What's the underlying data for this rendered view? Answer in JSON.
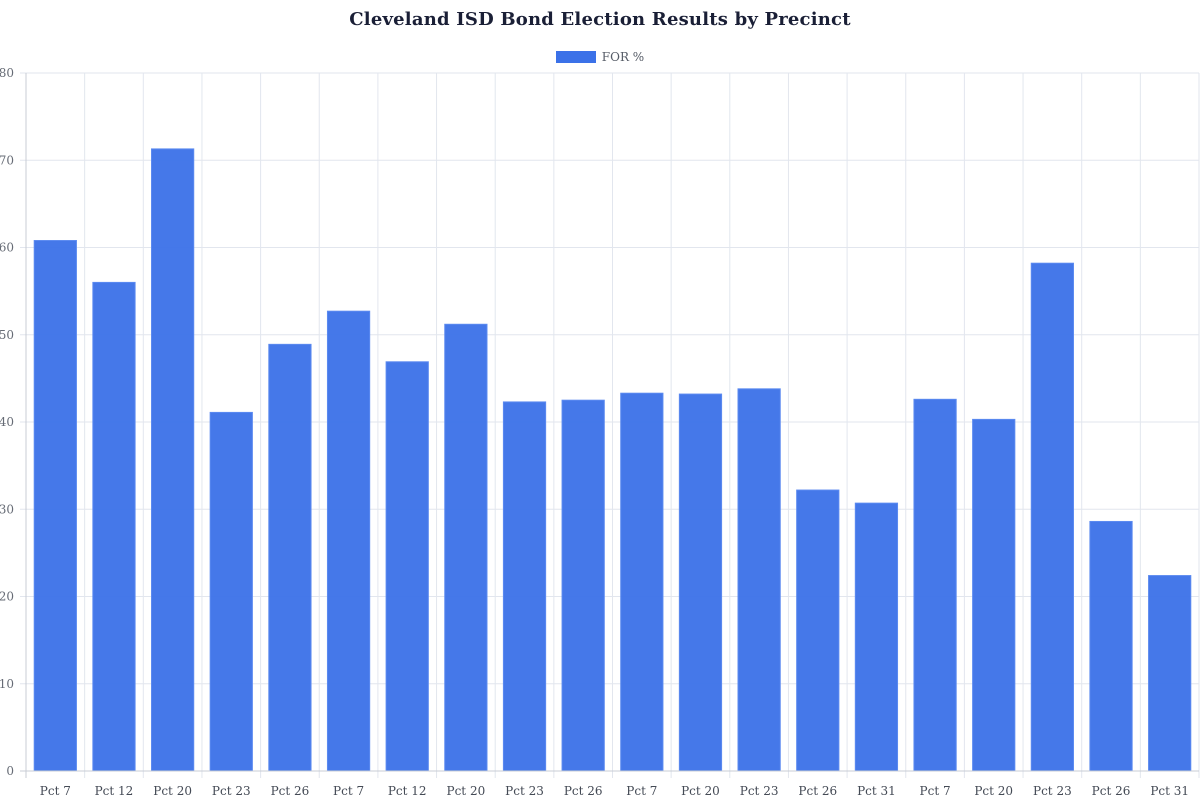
{
  "chart_data": {
    "type": "bar",
    "title": "Cleveland ISD Bond Election Results by Precinct",
    "xlabel": "",
    "ylabel": "",
    "ylim": [
      0,
      80
    ],
    "yticks": [
      0,
      10,
      20,
      30,
      40,
      50,
      60,
      70,
      80
    ],
    "grid": true,
    "legend_position": "top",
    "categories": [
      "Pct 7",
      "Pct 12",
      "Pct 20",
      "Pct 23",
      "Pct 26",
      "Pct 7",
      "Pct 12",
      "Pct 20",
      "Pct 23",
      "Pct 26",
      "Pct 7",
      "Pct 20",
      "Pct 23",
      "Pct 26",
      "Pct 31",
      "Pct 7",
      "Pct 20",
      "Pct 23",
      "Pct 26",
      "Pct 31"
    ],
    "series": [
      {
        "name": "FOR %",
        "color": "#3b71e8",
        "values": [
          60.8,
          56.0,
          71.3,
          41.1,
          48.9,
          52.7,
          46.9,
          51.2,
          42.3,
          42.5,
          43.3,
          43.2,
          43.8,
          32.2,
          30.7,
          42.6,
          40.3,
          58.2,
          28.6,
          22.4
        ]
      }
    ]
  },
  "legend": {
    "label": "FOR %",
    "color": "#3b71e8"
  }
}
